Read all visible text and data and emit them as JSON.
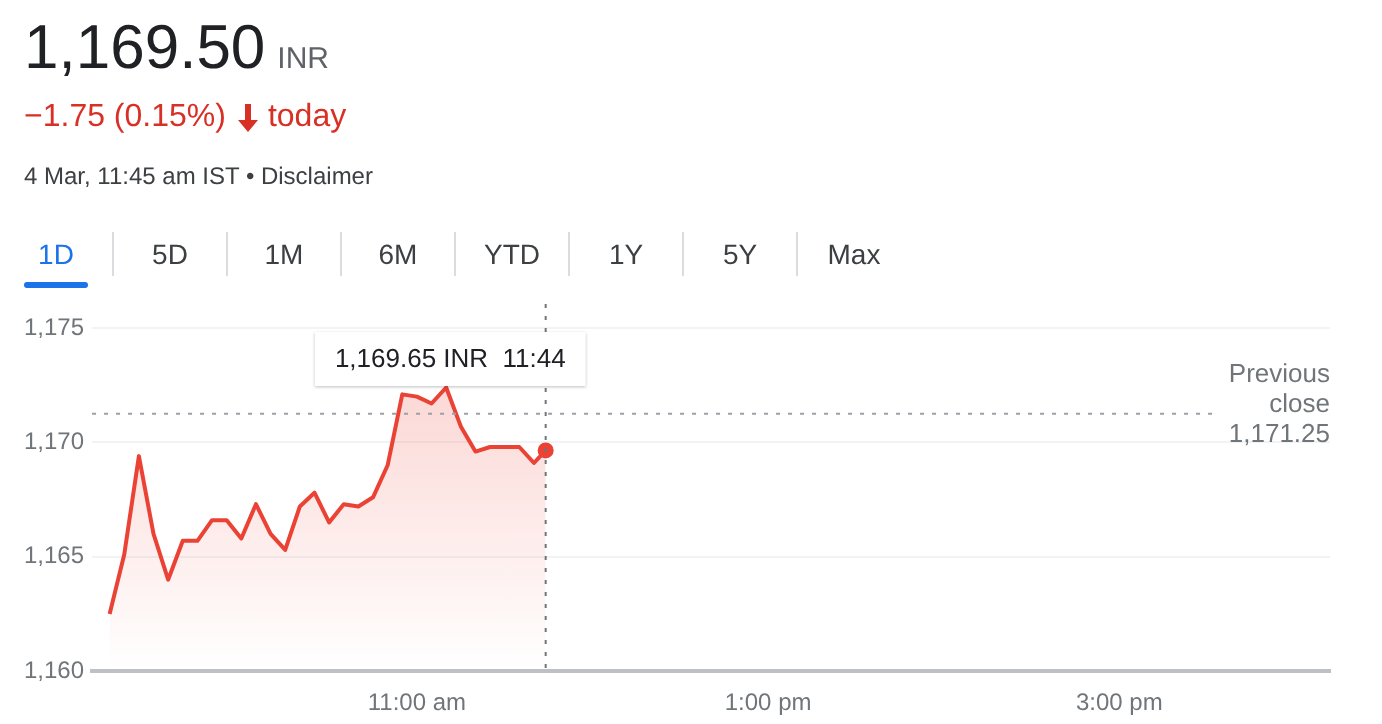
{
  "chart_data": {
    "type": "area",
    "title": "1,169.50",
    "subtitle": "INR",
    "annotations": [
      "−1.75 (0.15%)",
      "today",
      "4 Mar, 11:45 am IST • Disclaimer",
      "1D",
      "5D",
      "1M",
      "6M",
      "YTD",
      "1Y",
      "5Y",
      "Max",
      "1,169.65 INR  11:44"
    ],
    "x": [
      9.25,
      9.3333,
      9.4167,
      9.5,
      9.5833,
      9.6667,
      9.75,
      9.8333,
      9.9167,
      10.0,
      10.0833,
      10.1667,
      10.25,
      10.3333,
      10.4167,
      10.5,
      10.5833,
      10.6667,
      10.75,
      10.8333,
      10.9167,
      11.0,
      11.0833,
      11.1667,
      11.25,
      11.3333,
      11.4167,
      11.5,
      11.5833,
      11.6667,
      11.7333
    ],
    "series": [
      {
        "color": "#ea4335",
        "values": [
          1162.5,
          1165.1,
          1169.4,
          1166.0,
          1164.0,
          1165.7,
          1165.7,
          1166.6,
          1166.6,
          1165.8,
          1167.3,
          1166.0,
          1165.3,
          1167.2,
          1167.8,
          1166.5,
          1167.3,
          1167.2,
          1167.6,
          1169.0,
          1172.1,
          1172.0,
          1171.7,
          1172.4,
          1170.7,
          1169.6,
          1169.8,
          1169.8,
          1169.8,
          1169.1,
          1169.65
        ]
      }
    ],
    "xlim": [
      9.15,
      16.2
    ],
    "xticks": [
      {
        "value": 11,
        "label": "11:00 am"
      },
      {
        "value": 13,
        "label": "1:00 pm"
      },
      {
        "value": 15,
        "label": "3:00 pm"
      }
    ],
    "ylim": [
      1160,
      1175
    ],
    "yticks": [
      {
        "value": 1160,
        "label": "1,160"
      },
      {
        "value": 1165,
        "label": "1,165"
      },
      {
        "value": 1170,
        "label": "1,170"
      },
      {
        "value": 1175,
        "label": "1,175"
      }
    ],
    "ref_lines": [
      {
        "axis": "y",
        "value": 1171.25,
        "label": "Previous close 1,171.25",
        "line_style": "dotted",
        "color": "#9aa0a6"
      },
      {
        "axis": "x",
        "value": 11.7333,
        "line_style": "dotted",
        "color": "#70757a"
      }
    ],
    "grid": "y",
    "legend": false
  }
}
